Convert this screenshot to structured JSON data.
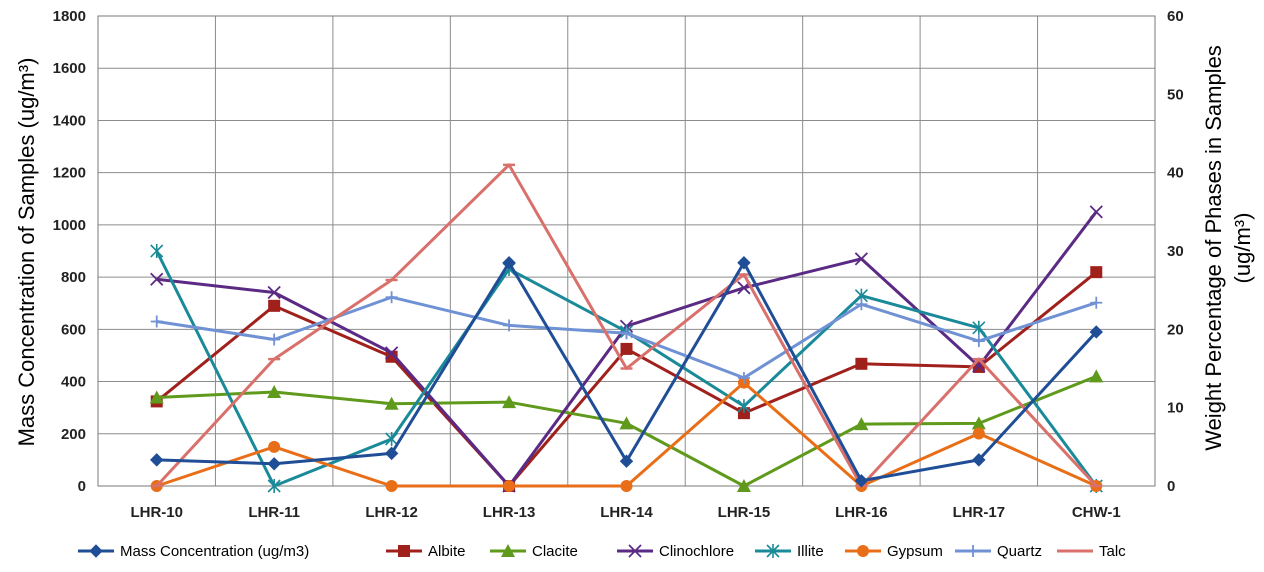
{
  "chart_data": {
    "type": "line",
    "categories": [
      "LHR-10",
      "LHR-11",
      "LHR-12",
      "LHR-13",
      "LHR-14",
      "LHR-15",
      "LHR-16",
      "LHR-17",
      "CHW-1"
    ],
    "ylabel_left": "Mass Concentration of Samples (ug/m³)",
    "ylabel_right_line1": "Weight Percentage of Phases in Samples",
    "ylabel_right_line2": "(ug/m³)",
    "ylim_left": [
      0,
      1800
    ],
    "ylim_right": [
      0,
      60
    ],
    "yticks_left": [
      "0",
      "200",
      "400",
      "600",
      "800",
      "1000",
      "1200",
      "1400",
      "1600",
      "1800"
    ],
    "yticks_right": [
      "0",
      "10",
      "20",
      "30",
      "40",
      "50",
      "60"
    ],
    "grid": true,
    "legend_position": "bottom",
    "series": [
      {
        "name": "Mass Concentration (ug/m3)",
        "axis": "left",
        "color": "#1f4e96",
        "marker": "diamond",
        "values": [
          100,
          85,
          125,
          855,
          95,
          855,
          20,
          100,
          590
        ]
      },
      {
        "name": "Albite",
        "axis": "right",
        "color": "#a0201c",
        "marker": "square",
        "values": [
          10.8,
          23,
          16.5,
          0,
          17.5,
          9.3,
          15.6,
          15.2,
          27.3
        ]
      },
      {
        "name": "Clacite",
        "axis": "right",
        "color": "#5f9a1c",
        "marker": "triangle",
        "values": [
          11.3,
          12,
          10.5,
          10.7,
          8,
          0,
          7.9,
          8,
          14
        ]
      },
      {
        "name": "Clinochlore",
        "axis": "right",
        "color": "#5a2a84",
        "marker": "x",
        "values": [
          26.4,
          24.7,
          17,
          0,
          20.4,
          25.3,
          29,
          15.3,
          35
        ]
      },
      {
        "name": "Illite",
        "axis": "right",
        "color": "#1a8a99",
        "marker": "star",
        "values": [
          30,
          0,
          6,
          27.7,
          19.7,
          10.2,
          24.3,
          20.2,
          0
        ]
      },
      {
        "name": "Gypsum",
        "axis": "right",
        "color": "#e86e18",
        "marker": "circle",
        "values": [
          0,
          5,
          0,
          0,
          0,
          13.2,
          0,
          6.7,
          0
        ]
      },
      {
        "name": "Quartz",
        "axis": "right",
        "color": "#7092d4",
        "marker": "plus",
        "values": [
          21,
          18.7,
          24.1,
          20.5,
          19.5,
          13.8,
          23.2,
          18.5,
          23.4
        ]
      },
      {
        "name": "Talc",
        "axis": "right",
        "color": "#d9706c",
        "marker": "dash",
        "values": [
          0,
          16.2,
          26.3,
          41,
          15,
          27,
          0,
          16.2,
          0
        ]
      }
    ]
  }
}
